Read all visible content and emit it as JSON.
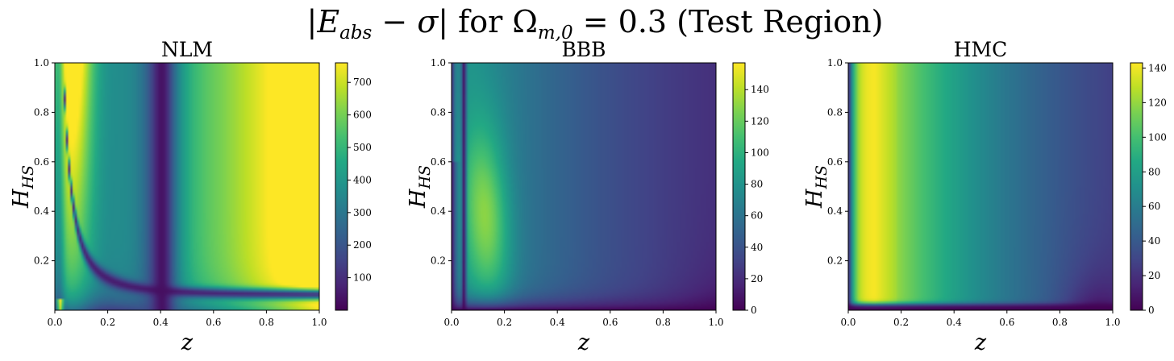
{
  "figure": {
    "suptitle": "|E_abs − σ| for Ω_m,0 = 0.3 (Test Region)",
    "suptitle_parts": {
      "lhs_open": "|",
      "E": "E",
      "E_sub": "abs",
      "minus_sigma": " − σ",
      "lhs_close": "|",
      "for": " for ",
      "Omega": "Ω",
      "Omega_sub": "m,0",
      "rhs": " = 0.3 (Test Region)"
    }
  },
  "colors": {
    "colormap": "viridis",
    "axis": "#000000",
    "background": "#ffffff"
  },
  "chart_data": [
    {
      "type": "heatmap",
      "title": "NLM",
      "xlabel": "z",
      "ylabel": "H_HS",
      "ylabel_parts": {
        "base": "H",
        "sub": "HS"
      },
      "xlim": [
        0.0,
        1.0
      ],
      "ylim": [
        0.0,
        1.0
      ],
      "xticks": [
        "0.0",
        "0.2",
        "0.4",
        "0.6",
        "0.8",
        "1.0"
      ],
      "yticks": [
        "0.2",
        "0.4",
        "0.6",
        "0.8",
        "1.0"
      ],
      "colorbar_ticks": [
        100,
        200,
        300,
        400,
        500,
        600,
        700
      ],
      "colorbar_range": [
        0,
        760
      ],
      "features": {
        "low_curve": "valley curving from low z at high H_HS down to H_HS≈0.05 near z≈0.35",
        "vertical_valley_z": 0.4,
        "peak": "bottom-right corner (z≈1.0, H_HS≈0.02) ≈ 750"
      }
    },
    {
      "type": "heatmap",
      "title": "BBB",
      "xlabel": "z",
      "ylabel": "H_HS",
      "ylabel_parts": {
        "base": "H",
        "sub": "HS"
      },
      "xlim": [
        0.0,
        1.0
      ],
      "ylim": [
        0.0,
        1.0
      ],
      "xticks": [
        "0.0",
        "0.2",
        "0.4",
        "0.6",
        "0.8",
        "1.0"
      ],
      "yticks": [
        "0.2",
        "0.4",
        "0.6",
        "0.8",
        "1.0"
      ],
      "colorbar_ticks": [
        0,
        20,
        40,
        60,
        80,
        100,
        120,
        140
      ],
      "colorbar_range": [
        0,
        157
      ],
      "features": {
        "peak": "z≈0.1, H_HS≈0.4 ≈ 150",
        "dark_strip_z": 0.045,
        "low_region": "bottom-right corner ≈ 0"
      }
    },
    {
      "type": "heatmap",
      "title": "HMC",
      "xlabel": "z",
      "ylabel": "H_HS",
      "ylabel_parts": {
        "base": "H",
        "sub": "HS"
      },
      "xlim": [
        0.0,
        1.0
      ],
      "ylim": [
        0.0,
        1.0
      ],
      "xticks": [
        "0.0",
        "0.2",
        "0.4",
        "0.6",
        "0.8",
        "1.0"
      ],
      "yticks": [
        "0.2",
        "0.4",
        "0.6",
        "0.8",
        "1.0"
      ],
      "colorbar_ticks": [
        0,
        20,
        40,
        60,
        80,
        100,
        120,
        140
      ],
      "colorbar_range": [
        0,
        143
      ],
      "features": {
        "peak": "band at z≈0.1 across H_HS ≈ 140",
        "low_region": "bottom strip H_HS<0.02 and bottom-right corner ≈ 0"
      }
    }
  ]
}
